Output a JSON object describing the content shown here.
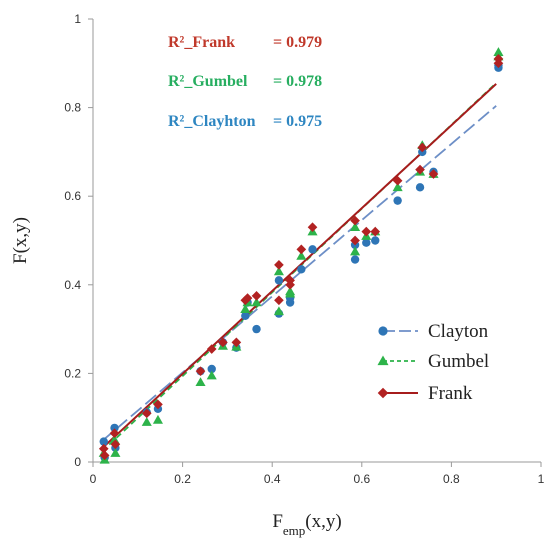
{
  "chart_data": {
    "type": "scatter",
    "xlabel": "F",
    "xlabel_sub": "emp",
    "xlabel_suffix": "(x,y)",
    "ylabel": "F(x,y)",
    "xlim": [
      0,
      1
    ],
    "ylim": [
      0,
      1
    ],
    "x_ticks": [
      "0",
      "0.2",
      "0.4",
      "0.6",
      "0.8",
      "1"
    ],
    "y_ticks": [
      "0",
      "0.2",
      "0.4",
      "0.6",
      "0.8",
      "1"
    ],
    "grid": false,
    "legend_position": "bottom-right",
    "annotations": [
      {
        "label": "R²_Frank",
        "value": "= 0.979",
        "color": "#c0392b"
      },
      {
        "label": "R²_Gumbel",
        "value": "= 0.978",
        "color": "#27ae60"
      },
      {
        "label": "R²_Clayhton",
        "value": "= 0.975",
        "color": "#2e86c1"
      }
    ],
    "series": [
      {
        "name": "Clayton",
        "marker": "circle",
        "line": "dash-dot",
        "color": "#2e75b6",
        "line_color": "#6d8fc7",
        "fit": {
          "slope": 0.86,
          "intercept": 0.03
        },
        "points": [
          [
            0.024,
            0.046
          ],
          [
            0.026,
            0.01
          ],
          [
            0.048,
            0.077
          ],
          [
            0.05,
            0.032
          ],
          [
            0.12,
            0.112
          ],
          [
            0.145,
            0.12
          ],
          [
            0.24,
            0.205
          ],
          [
            0.265,
            0.21
          ],
          [
            0.29,
            0.27
          ],
          [
            0.32,
            0.258
          ],
          [
            0.34,
            0.33
          ],
          [
            0.345,
            0.36
          ],
          [
            0.365,
            0.3
          ],
          [
            0.415,
            0.41
          ],
          [
            0.415,
            0.335
          ],
          [
            0.44,
            0.36
          ],
          [
            0.44,
            0.37
          ],
          [
            0.465,
            0.435
          ],
          [
            0.49,
            0.48
          ],
          [
            0.585,
            0.457
          ],
          [
            0.585,
            0.49
          ],
          [
            0.61,
            0.495
          ],
          [
            0.63,
            0.5
          ],
          [
            0.68,
            0.59
          ],
          [
            0.73,
            0.62
          ],
          [
            0.735,
            0.7
          ],
          [
            0.76,
            0.655
          ],
          [
            0.905,
            0.89
          ],
          [
            0.905,
            0.895
          ]
        ]
      },
      {
        "name": "Gumbel",
        "marker": "triangle",
        "line": "dash",
        "color": "#2db34a",
        "line_color": "#2db34a",
        "fit": {
          "slope": 0.945,
          "intercept": 0.005
        },
        "points": [
          [
            0.024,
            0.02
          ],
          [
            0.026,
            0.005
          ],
          [
            0.048,
            0.05
          ],
          [
            0.05,
            0.02
          ],
          [
            0.12,
            0.09
          ],
          [
            0.145,
            0.095
          ],
          [
            0.24,
            0.18
          ],
          [
            0.265,
            0.195
          ],
          [
            0.29,
            0.262
          ],
          [
            0.32,
            0.26
          ],
          [
            0.34,
            0.345
          ],
          [
            0.345,
            0.36
          ],
          [
            0.365,
            0.36
          ],
          [
            0.415,
            0.43
          ],
          [
            0.415,
            0.34
          ],
          [
            0.44,
            0.38
          ],
          [
            0.44,
            0.385
          ],
          [
            0.465,
            0.465
          ],
          [
            0.49,
            0.52
          ],
          [
            0.585,
            0.475
          ],
          [
            0.585,
            0.53
          ],
          [
            0.61,
            0.51
          ],
          [
            0.63,
            0.52
          ],
          [
            0.68,
            0.62
          ],
          [
            0.73,
            0.655
          ],
          [
            0.735,
            0.715
          ],
          [
            0.76,
            0.65
          ],
          [
            0.905,
            0.915
          ],
          [
            0.905,
            0.925
          ]
        ]
      },
      {
        "name": "Frank",
        "marker": "diamond",
        "line": "solid",
        "color": "#b22222",
        "line_color": "#a61c1c",
        "fit": {
          "slope": 0.935,
          "intercept": 0.012
        },
        "points": [
          [
            0.024,
            0.03
          ],
          [
            0.026,
            0.015
          ],
          [
            0.048,
            0.065
          ],
          [
            0.05,
            0.04
          ],
          [
            0.12,
            0.11
          ],
          [
            0.145,
            0.13
          ],
          [
            0.24,
            0.205
          ],
          [
            0.265,
            0.255
          ],
          [
            0.29,
            0.27
          ],
          [
            0.32,
            0.27
          ],
          [
            0.34,
            0.365
          ],
          [
            0.345,
            0.37
          ],
          [
            0.365,
            0.375
          ],
          [
            0.415,
            0.445
          ],
          [
            0.415,
            0.365
          ],
          [
            0.44,
            0.41
          ],
          [
            0.44,
            0.4
          ],
          [
            0.465,
            0.48
          ],
          [
            0.49,
            0.53
          ],
          [
            0.585,
            0.5
          ],
          [
            0.585,
            0.545
          ],
          [
            0.61,
            0.52
          ],
          [
            0.63,
            0.52
          ],
          [
            0.68,
            0.635
          ],
          [
            0.73,
            0.66
          ],
          [
            0.735,
            0.71
          ],
          [
            0.76,
            0.65
          ],
          [
            0.905,
            0.9
          ],
          [
            0.905,
            0.91
          ]
        ]
      }
    ]
  }
}
